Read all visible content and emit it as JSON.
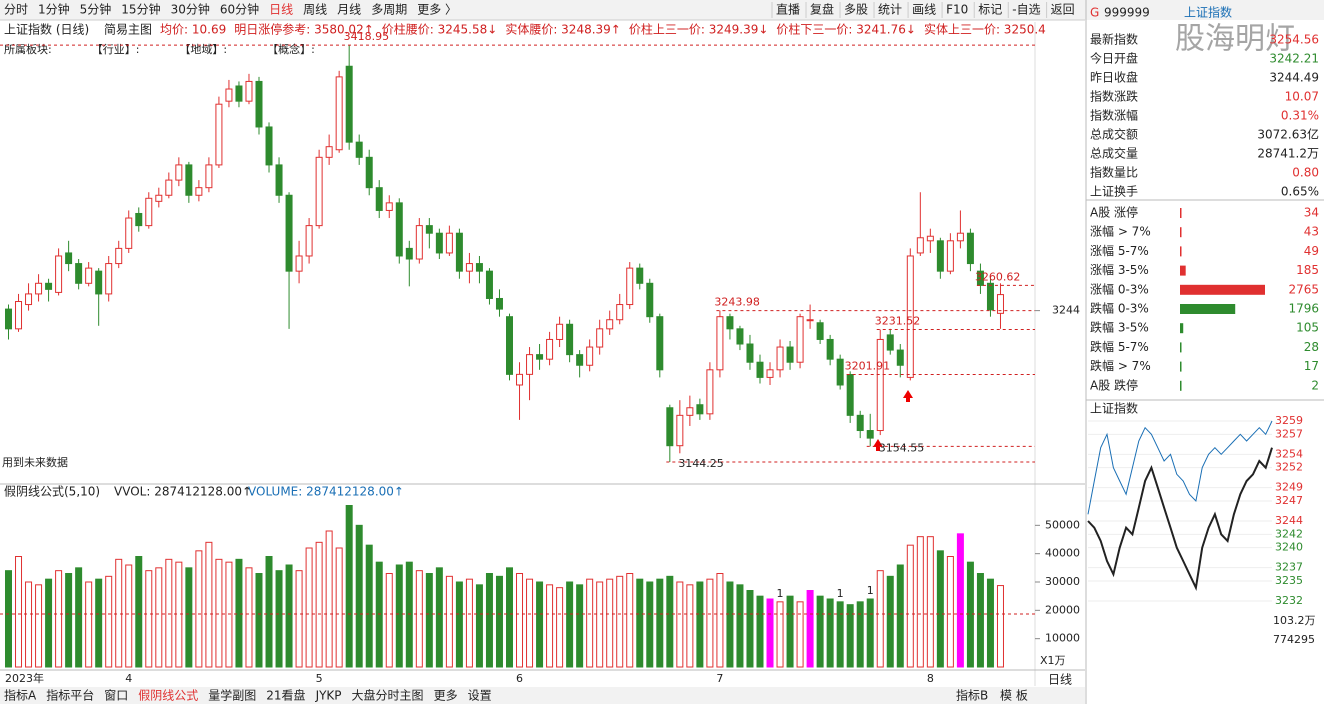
{
  "toolbar": {
    "tabs": [
      "分时",
      "1分钟",
      "5分钟",
      "15分钟",
      "30分钟",
      "60分钟",
      "日线",
      "周线",
      "月线",
      "多周期",
      "更多 〉"
    ],
    "active": 6,
    "buttons": [
      "直播",
      "复盘",
      "多股",
      "统计",
      "画线",
      "F10",
      "标记",
      "-自选",
      "返回"
    ]
  },
  "header": {
    "title": "上证指数 (日线)",
    "mode": "简易主图",
    "items": [
      "均价: 10.69",
      "明日涨停参考: 3580.02↑",
      "价柱腰价: 3245.58↓",
      "实体腰价: 3248.39↑",
      "价柱上三一价: 3249.39↓",
      "价柱下三一价: 3241.76↓",
      "实体上三一价: 3250.4"
    ],
    "sector": [
      "所属板块:",
      "【行业】:",
      "【地域】:",
      "【概念】:"
    ],
    "note": "用到未来数据"
  },
  "chart_data": {
    "type": "candlestick",
    "ylim": [
      3132.4,
      3422.3
    ],
    "yticks": [
      3244
    ],
    "up_color": "#e03030",
    "down_color": "#2e8b2e",
    "levels": [
      3418.95,
      3144.25,
      3243.98,
      3154.55,
      3231.52,
      3201.91,
      3260.62
    ],
    "x": [
      "2023年",
      null,
      null,
      null,
      null,
      null,
      null,
      null,
      null,
      null,
      null,
      null,
      "4",
      null,
      null,
      null,
      null,
      null,
      null,
      null,
      null,
      null,
      null,
      null,
      null,
      null,
      null,
      null,
      null,
      null,
      null,
      "5",
      null,
      null,
      null,
      null,
      null,
      null,
      null,
      null,
      null,
      null,
      null,
      null,
      null,
      null,
      null,
      null,
      null,
      null,
      null,
      "6",
      null,
      null,
      null,
      null,
      null,
      null,
      null,
      null,
      null,
      null,
      null,
      null,
      null,
      null,
      null,
      null,
      null,
      null,
      null,
      "7",
      null,
      null,
      null,
      null,
      null,
      null,
      null,
      null,
      null,
      null,
      null,
      null,
      null,
      null,
      null,
      null,
      null,
      null,
      null,
      null,
      "8",
      null,
      null,
      null,
      null,
      null,
      null,
      null
    ],
    "candles": [
      [
        3245,
        3248,
        3225,
        3232
      ],
      [
        3232,
        3255,
        3230,
        3250
      ],
      [
        3248,
        3262,
        3244,
        3255
      ],
      [
        3255,
        3268,
        3250,
        3262
      ],
      [
        3262,
        3265,
        3250,
        3258
      ],
      [
        3256,
        3285,
        3254,
        3280
      ],
      [
        3282,
        3290,
        3270,
        3275
      ],
      [
        3275,
        3278,
        3258,
        3262
      ],
      [
        3262,
        3276,
        3260,
        3272
      ],
      [
        3270,
        3272,
        3234,
        3255
      ],
      [
        3255,
        3280,
        3250,
        3275
      ],
      [
        3275,
        3290,
        3272,
        3285
      ],
      [
        3285,
        3310,
        3282,
        3305
      ],
      [
        3308,
        3312,
        3296,
        3300
      ],
      [
        3300,
        3322,
        3298,
        3318
      ],
      [
        3316,
        3325,
        3312,
        3320
      ],
      [
        3320,
        3335,
        3318,
        3330
      ],
      [
        3330,
        3345,
        3326,
        3340
      ],
      [
        3340,
        3342,
        3315,
        3320
      ],
      [
        3320,
        3330,
        3316,
        3325
      ],
      [
        3325,
        3345,
        3322,
        3340
      ],
      [
        3340,
        3385,
        3338,
        3380
      ],
      [
        3382,
        3396,
        3378,
        3390
      ],
      [
        3392,
        3395,
        3378,
        3382
      ],
      [
        3382,
        3400,
        3380,
        3395
      ],
      [
        3395,
        3398,
        3360,
        3365
      ],
      [
        3365,
        3368,
        3335,
        3340
      ],
      [
        3340,
        3345,
        3315,
        3320
      ],
      [
        3320,
        3322,
        3232,
        3270
      ],
      [
        3270,
        3290,
        3262,
        3280
      ],
      [
        3280,
        3305,
        3275,
        3300
      ],
      [
        3300,
        3350,
        3298,
        3345
      ],
      [
        3345,
        3360,
        3340,
        3352
      ],
      [
        3350,
        3402,
        3348,
        3398
      ],
      [
        3405,
        3418.95,
        3350,
        3355
      ],
      [
        3355,
        3360,
        3340,
        3345
      ],
      [
        3345,
        3350,
        3320,
        3325
      ],
      [
        3325,
        3330,
        3305,
        3310
      ],
      [
        3310,
        3320,
        3305,
        3315
      ],
      [
        3315,
        3318,
        3275,
        3280
      ],
      [
        3285,
        3290,
        3260,
        3278
      ],
      [
        3278,
        3305,
        3275,
        3300
      ],
      [
        3300,
        3305,
        3285,
        3295
      ],
      [
        3295,
        3298,
        3278,
        3282
      ],
      [
        3282,
        3300,
        3280,
        3295
      ],
      [
        3295,
        3298,
        3265,
        3270
      ],
      [
        3270,
        3282,
        3262,
        3275
      ],
      [
        3275,
        3280,
        3262,
        3270
      ],
      [
        3270,
        3272,
        3248,
        3252
      ],
      [
        3252,
        3258,
        3240,
        3245
      ],
      [
        3240,
        3242,
        3198,
        3202
      ],
      [
        3195,
        3210,
        3172,
        3202
      ],
      [
        3202,
        3220,
        3185,
        3215
      ],
      [
        3215,
        3222,
        3205,
        3212
      ],
      [
        3212,
        3230,
        3208,
        3225
      ],
      [
        3225,
        3240,
        3220,
        3235
      ],
      [
        3235,
        3238,
        3210,
        3215
      ],
      [
        3215,
        3218,
        3200,
        3208
      ],
      [
        3208,
        3225,
        3204,
        3220
      ],
      [
        3220,
        3238,
        3215,
        3232
      ],
      [
        3232,
        3244,
        3228,
        3238
      ],
      [
        3238,
        3255,
        3235,
        3248
      ],
      [
        3248,
        3276,
        3245,
        3272
      ],
      [
        3272,
        3275,
        3258,
        3262
      ],
      [
        3262,
        3265,
        3236,
        3240
      ],
      [
        3240,
        3242,
        3200,
        3205
      ],
      [
        3180,
        3182,
        3144.25,
        3155
      ],
      [
        3155,
        3185,
        3150,
        3175
      ],
      [
        3175,
        3188,
        3168,
        3180
      ],
      [
        3182,
        3186,
        3172,
        3176
      ],
      [
        3176,
        3210,
        3172,
        3205
      ],
      [
        3205,
        3243.98,
        3200,
        3240
      ],
      [
        3240,
        3242,
        3225,
        3232
      ],
      [
        3232,
        3234,
        3218,
        3222
      ],
      [
        3222,
        3228,
        3205,
        3210
      ],
      [
        3210,
        3215,
        3196,
        3200
      ],
      [
        3200,
        3210,
        3195,
        3205
      ],
      [
        3205,
        3225,
        3200,
        3220
      ],
      [
        3220,
        3224,
        3205,
        3210
      ],
      [
        3210,
        3242,
        3206,
        3240
      ],
      [
        3238,
        3248,
        3232,
        3238
      ],
      [
        3236,
        3238,
        3222,
        3225
      ],
      [
        3225,
        3228,
        3208,
        3212
      ],
      [
        3212,
        3215,
        3192,
        3195
      ],
      [
        3201.91,
        3204,
        3170,
        3175
      ],
      [
        3175,
        3178,
        3160,
        3165
      ],
      [
        3165,
        3176,
        3154.55,
        3160
      ],
      [
        3165,
        3231.52,
        3162,
        3225
      ],
      [
        3228,
        3232,
        3215,
        3218
      ],
      [
        3218,
        3222,
        3200,
        3208
      ],
      [
        3200,
        3285,
        3198,
        3280
      ],
      [
        3282,
        3322,
        3280,
        3292
      ],
      [
        3290,
        3298,
        3282,
        3293
      ],
      [
        3290,
        3292,
        3265,
        3270
      ],
      [
        3270,
        3295,
        3268,
        3290
      ],
      [
        3290,
        3310,
        3285,
        3295
      ],
      [
        3295,
        3298,
        3270,
        3275
      ],
      [
        3270,
        3275,
        3255,
        3260.62
      ],
      [
        3262,
        3265,
        3240,
        3244.49
      ],
      [
        3242.21,
        3262,
        3232,
        3254.56
      ]
    ]
  },
  "volume_chart": {
    "type": "bar",
    "title": "假阴线公式(5,10)",
    "vvol": "VVOL: 287412128.00↑",
    "volume": "VOLUME: 287412128.00↑",
    "unit": "X1万",
    "ylim": [
      0,
      60000
    ],
    "yticks": [
      10000,
      20000,
      30000,
      40000,
      50000
    ],
    "reference": 18700,
    "special_color": "#ff00ff",
    "special": [
      76,
      80,
      95
    ],
    "annotations": [
      {
        "text": "1",
        "at": 77
      },
      {
        "text": "1",
        "at": 83
      },
      {
        "text": "1",
        "at": 86
      }
    ],
    "values": [
      34000,
      39000,
      30000,
      29000,
      31000,
      34000,
      33000,
      35000,
      30000,
      31000,
      32000,
      38000,
      36000,
      39000,
      34000,
      35000,
      38000,
      37000,
      35000,
      41000,
      44000,
      38000,
      37000,
      38000,
      35000,
      33000,
      39000,
      34000,
      36000,
      34000,
      42000,
      44000,
      48000,
      42000,
      57000,
      50000,
      43000,
      37000,
      33000,
      36000,
      37000,
      34000,
      33000,
      35000,
      32000,
      30000,
      31000,
      29000,
      33000,
      32000,
      35000,
      33000,
      31000,
      30000,
      29000,
      28000,
      30000,
      29000,
      31000,
      30000,
      31000,
      32000,
      33000,
      31000,
      30000,
      31000,
      32000,
      30000,
      29000,
      30000,
      31000,
      33000,
      30000,
      29000,
      27000,
      25000,
      24000,
      23000,
      25000,
      23000,
      27000,
      25000,
      24000,
      23000,
      22000,
      23000,
      24000,
      34000,
      32000,
      36000,
      43000,
      46000,
      46000,
      41000,
      39000,
      47000,
      37000,
      33000,
      31000,
      28741.2
    ]
  },
  "bottom_tabs": {
    "tabs": [
      "指标A",
      "指标平台",
      "窗口",
      "假阴线公式",
      "量学副图",
      "21看盘",
      "JYKP",
      "大盘分时主图",
      "更多",
      "设置"
    ],
    "active": 3,
    "right": [
      "日线",
      "指标B",
      "模 板"
    ]
  },
  "panel": {
    "code": "G",
    "symbol": "999999",
    "name": "上证指数",
    "watermark": "股海明灯",
    "stats": [
      {
        "label": "最新指数",
        "value": "3254.56",
        "color": "#e03030"
      },
      {
        "label": "今日开盘",
        "value": "3242.21",
        "color": "#2e8b2e"
      },
      {
        "label": "昨日收盘",
        "value": "3244.49",
        "color": "#222"
      },
      {
        "label": "指数涨跌",
        "value": "10.07",
        "color": "#e03030"
      },
      {
        "label": "指数涨幅",
        "value": "0.31%",
        "color": "#e03030"
      },
      {
        "label": "总成交额",
        "value": "3072.63亿",
        "color": "#222"
      },
      {
        "label": "总成交量",
        "value": "28741.2万",
        "color": "#222"
      },
      {
        "label": "指数量比",
        "value": "0.80",
        "color": "#e03030"
      },
      {
        "label": "上证换手",
        "value": "0.65%",
        "color": "#222"
      }
    ],
    "breadth": [
      {
        "label": "A股 涨停",
        "value": 34,
        "color": "#e03030"
      },
      {
        "label": "涨幅 > 7%",
        "value": 43,
        "color": "#e03030"
      },
      {
        "label": "涨幅 5-7%",
        "value": 49,
        "color": "#e03030"
      },
      {
        "label": "涨幅 3-5%",
        "value": 185,
        "color": "#e03030"
      },
      {
        "label": "涨幅 0-3%",
        "value": 2765,
        "color": "#e03030"
      },
      {
        "label": "跌幅 0-3%",
        "value": 1796,
        "color": "#2e8b2e"
      },
      {
        "label": "跌幅 3-5%",
        "value": 105,
        "color": "#2e8b2e"
      },
      {
        "label": "跌幅 5-7%",
        "value": 28,
        "color": "#2e8b2e"
      },
      {
        "label": "跌幅 > 7%",
        "value": 17,
        "color": "#2e8b2e"
      },
      {
        "label": "A股 跌停",
        "value": 2,
        "color": "#2e8b2e"
      }
    ],
    "minute": {
      "type": "line",
      "title": "上证指数",
      "ylim": [
        3230.5,
        3260.5
      ],
      "yticks": [
        3259,
        3257,
        3254,
        3252,
        3249,
        3247,
        3244,
        3242,
        3240,
        3237,
        3235,
        3232
      ],
      "vol_labels": [
        "103.2万",
        "774295"
      ],
      "series": [
        {
          "color": "#222",
          "values": [
            3244,
            3243,
            3241,
            3238,
            3236,
            3240,
            3243,
            3242,
            3246,
            3250,
            3252,
            3249,
            3246,
            3243,
            3240,
            3238,
            3236,
            3234,
            3240,
            3243,
            3245,
            3242,
            3241,
            3245,
            3248,
            3250,
            3251,
            3253,
            3252,
            3255
          ]
        },
        {
          "color": "#1a6fb5",
          "values": [
            3245,
            3250,
            3255,
            3257,
            3252,
            3250,
            3248,
            3252,
            3256,
            3258,
            3257,
            3255,
            3253,
            3254,
            3251,
            3250,
            3248,
            3247,
            3252,
            3254,
            3255,
            3254,
            3255,
            3256,
            3257,
            3256,
            3257,
            3258,
            3257,
            3259
          ]
        }
      ]
    }
  }
}
